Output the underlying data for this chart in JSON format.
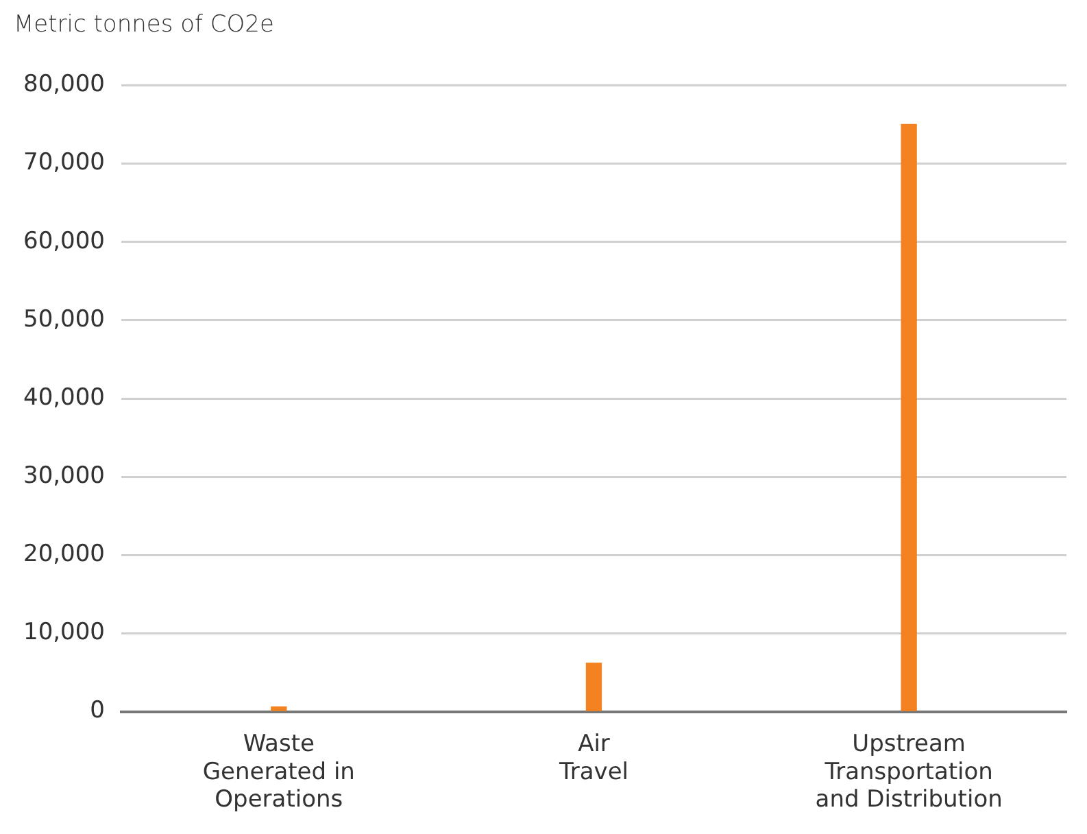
{
  "chart_data": {
    "type": "bar",
    "ylabel": "Metric tonnes of CO2e",
    "categories": [
      "Waste\nGenerated in\nOperations",
      "Air\nTravel",
      "Upstream\nTransportation\nand Distribution"
    ],
    "values": [
      600,
      6200,
      75000
    ],
    "color": "#f58220",
    "ylim": [
      0,
      80000
    ],
    "yticks": [
      0,
      {
        "value": 10000,
        "label": "10,000"
      },
      {
        "value": 20000,
        "label": "20,000"
      },
      {
        "value": 30000,
        "label": "30,000"
      },
      {
        "value": 40000,
        "label": "40,000"
      },
      {
        "value": 50000,
        "label": "50,000"
      },
      {
        "value": 60000,
        "label": "60,000"
      },
      {
        "value": 70000,
        "label": "70,000"
      },
      {
        "value": 80000,
        "label": "80,000"
      }
    ],
    "grid": "y",
    "legend": false
  }
}
